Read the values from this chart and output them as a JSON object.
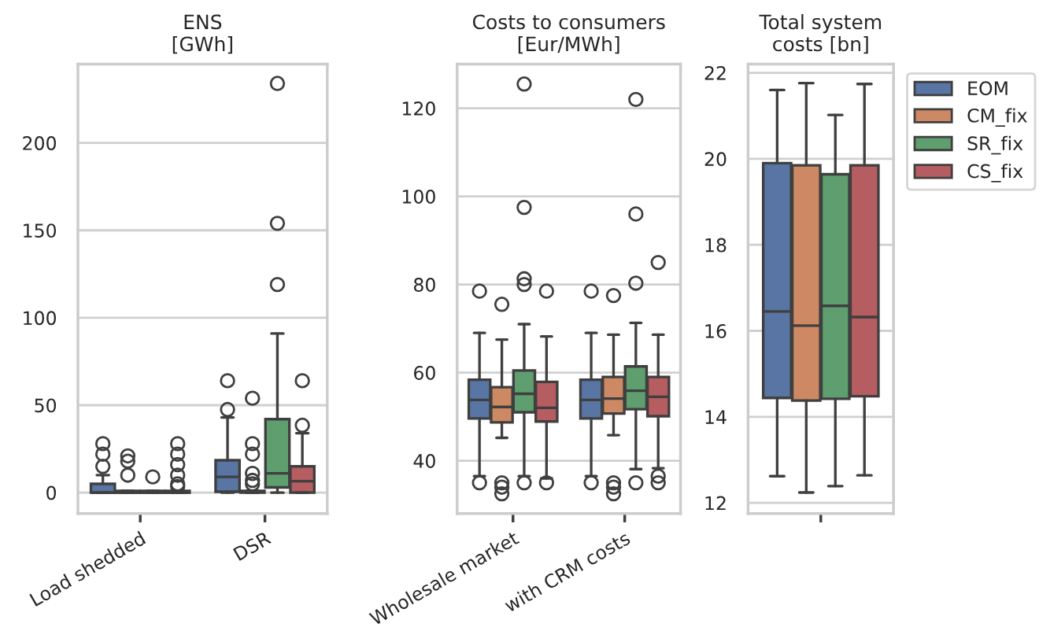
{
  "chart_data": [
    {
      "type": "box",
      "title": "ENS\n[GWh]",
      "categories": [
        "Load shedded",
        "DSR"
      ],
      "ylim": [
        -12,
        245
      ],
      "yticks": [
        0,
        50,
        100,
        150,
        200
      ],
      "grid": "y",
      "series": [
        {
          "color": "#5975a4",
          "boxes": [
            {
              "low": 0,
              "q1": 0,
              "median": 0,
              "q3": 5,
              "high": 10,
              "outliers": [
                28,
                22,
                15
              ]
            },
            {
              "low": 0,
              "q1": 0.5,
              "median": 9,
              "q3": 18.5,
              "high": 43,
              "outliers": [
                47.5,
                64
              ]
            }
          ]
        },
        {
          "color": "#cc8963",
          "boxes": [
            {
              "low": 0,
              "q1": 0,
              "median": 0,
              "q3": 1,
              "high": 1,
              "outliers": [
                21,
                18,
                10
              ]
            },
            {
              "low": 0,
              "q1": 0,
              "median": 0.5,
              "q3": 1,
              "high": 1,
              "outliers": [
                54,
                28,
                22,
                11,
                7,
                5
              ]
            }
          ]
        },
        {
          "color": "#5f9e6e",
          "boxes": [
            {
              "low": 0,
              "q1": 0,
              "median": 0,
              "q3": 1,
              "high": 1,
              "outliers": [
                9
              ]
            },
            {
              "low": 0,
              "q1": 3,
              "median": 11,
              "q3": 42,
              "high": 91,
              "outliers": [
                119,
                154,
                234
              ]
            }
          ]
        },
        {
          "color": "#b55d60",
          "boxes": [
            {
              "low": 0,
              "q1": 0,
              "median": 0,
              "q3": 1,
              "high": 1,
              "outliers": [
                28,
                22,
                16,
                10,
                5,
                3.5
              ]
            },
            {
              "low": 0,
              "q1": 0,
              "median": 6.5,
              "q3": 15,
              "high": 34,
              "outliers": [
                38.5,
                64
              ]
            }
          ]
        }
      ]
    },
    {
      "type": "box",
      "title": "Costs to consumers\n[Eur/MWh]",
      "categories": [
        "Wholesale market",
        "with CRM costs"
      ],
      "ylim": [
        28,
        130
      ],
      "yticks": [
        40,
        60,
        80,
        100,
        120
      ],
      "grid": "y",
      "series": [
        {
          "color": "#5975a4",
          "boxes": [
            {
              "low": 36.5,
              "q1": 49.6,
              "median": 53.8,
              "q3": 58.4,
              "high": 69,
              "outliers": [
                78.5,
                35
              ]
            },
            {
              "low": 36.5,
              "q1": 49.6,
              "median": 53.8,
              "q3": 58.4,
              "high": 69,
              "outliers": [
                78.5,
                35
              ]
            }
          ]
        },
        {
          "color": "#cc8963",
          "boxes": [
            {
              "low": 45.2,
              "q1": 48.7,
              "median": 52.2,
              "q3": 56.7,
              "high": 67.5,
              "outliers": [
                75.5,
                35,
                34,
                32.5
              ]
            },
            {
              "low": 45.8,
              "q1": 50.7,
              "median": 54.1,
              "q3": 59,
              "high": 68.6,
              "outliers": [
                77.5,
                35,
                34,
                32.5
              ]
            }
          ]
        },
        {
          "color": "#5f9e6e",
          "boxes": [
            {
              "low": 36.5,
              "q1": 51,
              "median": 55.2,
              "q3": 60.5,
              "high": 71,
              "outliers": [
                125.5,
                97.5,
                81.3,
                80,
                35
              ]
            },
            {
              "low": 38.1,
              "q1": 51.7,
              "median": 55.9,
              "q3": 61.4,
              "high": 71.3,
              "outliers": [
                122,
                96,
                80.3,
                35
              ]
            }
          ]
        },
        {
          "color": "#b55d60",
          "boxes": [
            {
              "low": 36,
              "q1": 48.9,
              "median": 52,
              "q3": 57.9,
              "high": 68.2,
              "outliers": [
                78.5,
                35
              ]
            },
            {
              "low": 38.3,
              "q1": 50.1,
              "median": 54.5,
              "q3": 59,
              "high": 68.6,
              "outliers": [
                85,
                36.5,
                35
              ]
            }
          ]
        }
      ]
    },
    {
      "type": "box",
      "title": "Total system\ncosts [bn]",
      "categories": [
        null
      ],
      "ylim": [
        11.75,
        22.2
      ],
      "yticks": [
        12,
        14,
        16,
        18,
        20,
        22
      ],
      "grid": "y",
      "legend": "top right",
      "series": [
        {
          "name": "EOM",
          "color": "#5975a4",
          "boxes": [
            {
              "low": 12.62,
              "q1": 14.44,
              "median": 16.45,
              "q3": 19.9,
              "high": 21.6
            }
          ]
        },
        {
          "name": "CM_fix",
          "color": "#cc8963",
          "boxes": [
            {
              "low": 12.24,
              "q1": 14.38,
              "median": 16.12,
              "q3": 19.85,
              "high": 21.76
            }
          ]
        },
        {
          "name": "SR_fix",
          "color": "#5f9e6e",
          "boxes": [
            {
              "low": 12.39,
              "q1": 14.42,
              "median": 16.58,
              "q3": 19.64,
              "high": 21.02
            }
          ]
        },
        {
          "name": "CS_fix",
          "color": "#b55d60",
          "boxes": [
            {
              "low": 12.64,
              "q1": 14.48,
              "median": 16.32,
              "q3": 19.85,
              "high": 21.74
            }
          ]
        }
      ]
    }
  ]
}
